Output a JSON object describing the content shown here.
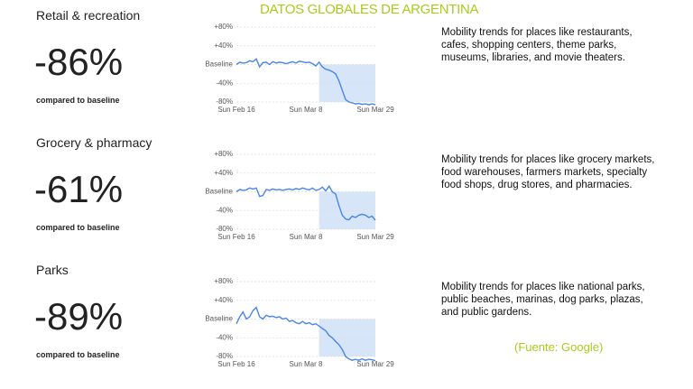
{
  "title": "DATOS GLOBALES DE ARGENTINA",
  "source": "(Fuente: Google)",
  "chart_data": [
    {
      "type": "line",
      "title": "Retail & recreation",
      "headline": "-86%",
      "caption": "compared to baseline",
      "description": "Mobility trends for places like restaurants, cafes, shopping centers, theme parks, museums, libraries, and movie theaters.",
      "x": [
        "Feb 16",
        "Feb 17",
        "Feb 18",
        "Feb 19",
        "Feb 20",
        "Feb 21",
        "Feb 22",
        "Feb 23",
        "Feb 24",
        "Feb 25",
        "Feb 26",
        "Feb 27",
        "Feb 28",
        "Feb 29",
        "Mar 1",
        "Mar 2",
        "Mar 3",
        "Mar 4",
        "Mar 5",
        "Mar 6",
        "Mar 7",
        "Mar 8",
        "Mar 9",
        "Mar 10",
        "Mar 11",
        "Mar 12",
        "Mar 13",
        "Mar 14",
        "Mar 15",
        "Mar 16",
        "Mar 17",
        "Mar 18",
        "Mar 19",
        "Mar 20",
        "Mar 21",
        "Mar 22",
        "Mar 23",
        "Mar 24",
        "Mar 25",
        "Mar 26",
        "Mar 27",
        "Mar 28",
        "Mar 29"
      ],
      "values": [
        0,
        5,
        3,
        4,
        8,
        6,
        12,
        -5,
        4,
        5,
        0,
        6,
        3,
        5,
        4,
        2,
        4,
        6,
        3,
        7,
        6,
        4,
        5,
        2,
        -3,
        5,
        -5,
        -10,
        -12,
        -15,
        -20,
        -35,
        -55,
        -75,
        -80,
        -82,
        -84,
        -83,
        -85,
        -84,
        -86,
        -84,
        -86
      ],
      "color": "#4a86e8",
      "highlight_from": "Mar 12",
      "highlight_color": "#d7e5f8",
      "ylim": [
        -80,
        80
      ],
      "yticks": [
        {
          "value": 80,
          "label": "+80%"
        },
        {
          "value": 40,
          "label": "+40%"
        },
        {
          "value": 0,
          "label": "Baseline"
        },
        {
          "value": -40,
          "label": "-40%"
        },
        {
          "value": -80,
          "label": "-80%"
        }
      ],
      "xticks": [
        {
          "value": "Feb 16",
          "label": "Sun Feb 16"
        },
        {
          "value": "Mar 8",
          "label": "Sun Mar 8"
        },
        {
          "value": "Mar 29",
          "label": "Sun Mar 29"
        }
      ],
      "grid": true
    },
    {
      "type": "line",
      "title": "Grocery & pharmacy",
      "headline": "-61%",
      "caption": "compared to baseline",
      "description": "Mobility trends for places like grocery markets, food warehouses, farmers markets, specialty food shops, drug stores, and pharmacies.",
      "x": [
        "Feb 16",
        "Feb 17",
        "Feb 18",
        "Feb 19",
        "Feb 20",
        "Feb 21",
        "Feb 22",
        "Feb 23",
        "Feb 24",
        "Feb 25",
        "Feb 26",
        "Feb 27",
        "Feb 28",
        "Feb 29",
        "Mar 1",
        "Mar 2",
        "Mar 3",
        "Mar 4",
        "Mar 5",
        "Mar 6",
        "Mar 7",
        "Mar 8",
        "Mar 9",
        "Mar 10",
        "Mar 11",
        "Mar 12",
        "Mar 13",
        "Mar 14",
        "Mar 15",
        "Mar 16",
        "Mar 17",
        "Mar 18",
        "Mar 19",
        "Mar 20",
        "Mar 21",
        "Mar 22",
        "Mar 23",
        "Mar 24",
        "Mar 25",
        "Mar 26",
        "Mar 27",
        "Mar 28",
        "Mar 29"
      ],
      "values": [
        0,
        5,
        3,
        4,
        8,
        6,
        8,
        -10,
        -8,
        5,
        3,
        6,
        4,
        5,
        3,
        5,
        6,
        4,
        7,
        5,
        8,
        6,
        4,
        8,
        3,
        5,
        10,
        2,
        12,
        0,
        -5,
        -30,
        -50,
        -58,
        -60,
        -52,
        -55,
        -50,
        -48,
        -50,
        -55,
        -52,
        -61
      ],
      "color": "#4a86e8",
      "highlight_from": "Mar 12",
      "highlight_color": "#d7e5f8",
      "ylim": [
        -80,
        80
      ],
      "yticks": [
        {
          "value": 80,
          "label": "+80%"
        },
        {
          "value": 40,
          "label": "+40%"
        },
        {
          "value": 0,
          "label": "Baseline"
        },
        {
          "value": -40,
          "label": "-40%"
        },
        {
          "value": -80,
          "label": "-80%"
        }
      ],
      "xticks": [
        {
          "value": "Feb 16",
          "label": "Sun Feb 16"
        },
        {
          "value": "Mar 8",
          "label": "Sun Mar 8"
        },
        {
          "value": "Mar 29",
          "label": "Sun Mar 29"
        }
      ],
      "grid": true
    },
    {
      "type": "line",
      "title": "Parks",
      "headline": "-89%",
      "caption": "compared to baseline",
      "description": "Mobility trends for places like national parks, public beaches, marinas, dog parks, plazas, and public gardens.",
      "x": [
        "Feb 16",
        "Feb 17",
        "Feb 18",
        "Feb 19",
        "Feb 20",
        "Feb 21",
        "Feb 22",
        "Feb 23",
        "Feb 24",
        "Feb 25",
        "Feb 26",
        "Feb 27",
        "Feb 28",
        "Feb 29",
        "Mar 1",
        "Mar 2",
        "Mar 3",
        "Mar 4",
        "Mar 5",
        "Mar 6",
        "Mar 7",
        "Mar 8",
        "Mar 9",
        "Mar 10",
        "Mar 11",
        "Mar 12",
        "Mar 13",
        "Mar 14",
        "Mar 15",
        "Mar 16",
        "Mar 17",
        "Mar 18",
        "Mar 19",
        "Mar 20",
        "Mar 21",
        "Mar 22",
        "Mar 23",
        "Mar 24",
        "Mar 25",
        "Mar 26",
        "Mar 27",
        "Mar 28",
        "Mar 29"
      ],
      "values": [
        -10,
        5,
        15,
        0,
        5,
        18,
        25,
        5,
        0,
        8,
        5,
        6,
        3,
        5,
        0,
        2,
        -5,
        -3,
        -8,
        -10,
        -5,
        -10,
        -8,
        -12,
        -10,
        -15,
        -20,
        -25,
        -35,
        -40,
        -48,
        -55,
        -65,
        -80,
        -85,
        -88,
        -86,
        -88,
        -85,
        -88,
        -86,
        -87,
        -89
      ],
      "color": "#4a86e8",
      "highlight_from": "Mar 12",
      "highlight_color": "#d7e5f8",
      "ylim": [
        -80,
        80
      ],
      "yticks": [
        {
          "value": 80,
          "label": "+80%"
        },
        {
          "value": 40,
          "label": "+40%"
        },
        {
          "value": 0,
          "label": "Baseline"
        },
        {
          "value": -40,
          "label": "-40%"
        },
        {
          "value": -80,
          "label": "-80%"
        }
      ],
      "xticks": [
        {
          "value": "Feb 16",
          "label": "Sun Feb 16"
        },
        {
          "value": "Mar 8",
          "label": "Sun Mar 8"
        },
        {
          "value": "Mar 29",
          "label": "Sun Mar 29"
        }
      ],
      "grid": true
    }
  ]
}
